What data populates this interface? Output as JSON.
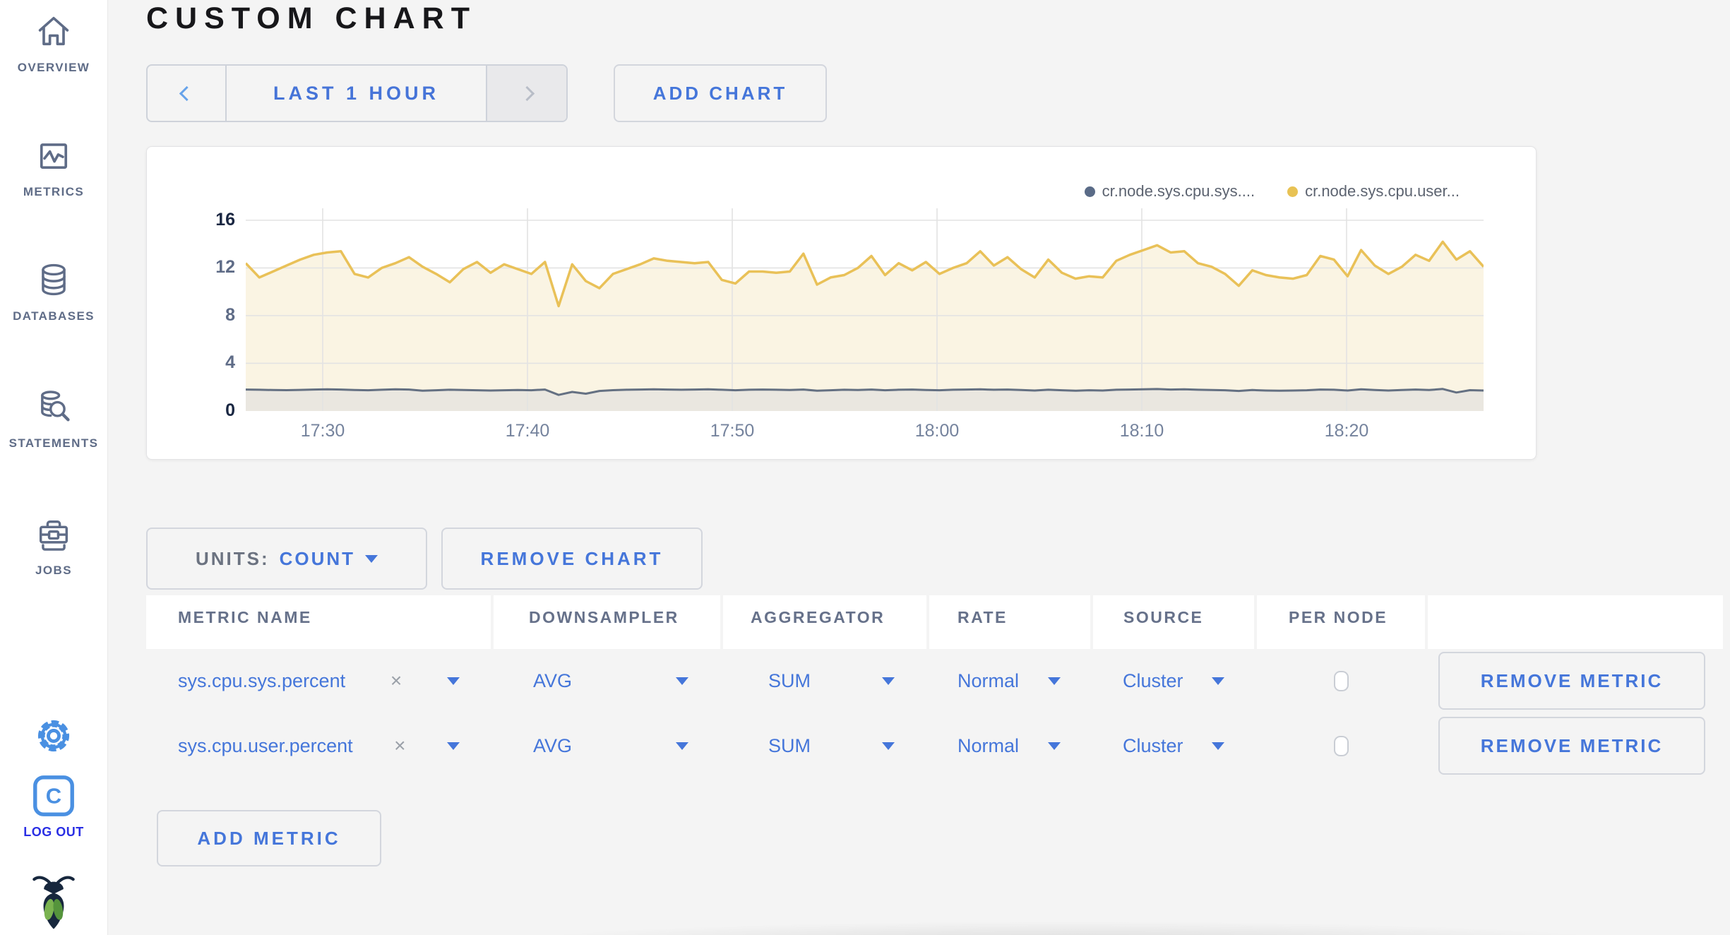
{
  "page": {
    "title": "CUSTOM CHART"
  },
  "colors": {
    "accent_blue": "#4576da",
    "sidebar_slate": "#5f6c87",
    "logout_blue": "#2a2fe4",
    "icon_blue": "#4a90e2",
    "series_sys": "#647082",
    "series_user": "#e9c158",
    "fill_user": "#faf4e3",
    "fill_sys": "#eae7e0"
  },
  "sidebar": {
    "items": [
      {
        "id": "overview",
        "label": "OVERVIEW"
      },
      {
        "id": "metrics",
        "label": "METRICS"
      },
      {
        "id": "databases",
        "label": "DATABASES"
      },
      {
        "id": "statements",
        "label": "STATEMENTS"
      },
      {
        "id": "jobs",
        "label": "JOBS"
      }
    ],
    "logout_label": "LOG OUT"
  },
  "toolbar": {
    "time_range_label": "LAST 1 HOUR",
    "add_chart_label": "ADD CHART"
  },
  "chart_controls": {
    "units_label": "UNITS:",
    "units_value": "COUNT",
    "remove_chart_label": "REMOVE CHART",
    "add_metric_label": "ADD METRIC"
  },
  "table": {
    "headers": [
      "METRIC NAME",
      "DOWNSAMPLER",
      "AGGREGATOR",
      "RATE",
      "SOURCE",
      "PER NODE"
    ],
    "rows": [
      {
        "metric": "sys.cpu.sys.percent",
        "clear": "×",
        "downsampler": "AVG",
        "aggregator": "SUM",
        "rate": "Normal",
        "source": "Cluster",
        "per_node": false,
        "remove_label": "REMOVE METRIC"
      },
      {
        "metric": "sys.cpu.user.percent",
        "clear": "×",
        "downsampler": "AVG",
        "aggregator": "SUM",
        "rate": "Normal",
        "source": "Cluster",
        "per_node": false,
        "remove_label": "REMOVE METRIC"
      }
    ]
  },
  "chart_data": {
    "type": "area",
    "title": "",
    "xlabel": "",
    "ylabel": "",
    "ylim": [
      0,
      17
    ],
    "grid": true,
    "legend_position": "top-right",
    "x_ticks": [
      "17:30",
      "17:40",
      "17:50",
      "18:00",
      "18:10",
      "18:20"
    ],
    "y_ticks": [
      0,
      4,
      8,
      12,
      16
    ],
    "legend": [
      {
        "name": "cr.node.sys.cpu.sys....",
        "color": "#5a6b87"
      },
      {
        "name": "cr.node.sys.cpu.user...",
        "color": "#e8c254"
      }
    ],
    "series": [
      {
        "name": "cr.node.sys.cpu.user...",
        "color": "#e9c158",
        "fill": "#faf4e3",
        "values": [
          12.4,
          11.2,
          11.7,
          12.2,
          12.7,
          13.1,
          13.3,
          13.4,
          11.5,
          11.2,
          12.0,
          12.4,
          12.9,
          12.1,
          11.5,
          10.8,
          11.9,
          12.5,
          11.6,
          12.3,
          11.9,
          11.5,
          12.5,
          8.8,
          12.3,
          10.9,
          10.3,
          11.5,
          11.9,
          12.3,
          12.8,
          12.6,
          12.5,
          12.4,
          12.5,
          11.0,
          10.7,
          11.7,
          11.7,
          11.6,
          11.7,
          13.2,
          10.6,
          11.2,
          11.4,
          12.0,
          13.0,
          11.4,
          12.4,
          11.8,
          12.5,
          11.5,
          12.0,
          12.4,
          13.4,
          12.2,
          12.9,
          11.9,
          11.2,
          12.7,
          11.6,
          11.1,
          11.3,
          11.2,
          12.6,
          13.1,
          13.5,
          13.9,
          13.3,
          13.4,
          12.4,
          12.1,
          11.5,
          10.5,
          11.8,
          11.4,
          11.2,
          11.1,
          11.4,
          13.0,
          12.7,
          11.3,
          13.5,
          12.2,
          11.5,
          12.1,
          13.1,
          12.6,
          14.2,
          12.7,
          13.4,
          12.1
        ]
      },
      {
        "name": "cr.node.sys.cpu.sys....",
        "color": "#647082",
        "fill": "#eae7e0",
        "values": [
          1.8,
          1.78,
          1.76,
          1.75,
          1.77,
          1.8,
          1.82,
          1.8,
          1.76,
          1.74,
          1.78,
          1.82,
          1.8,
          1.7,
          1.74,
          1.78,
          1.76,
          1.74,
          1.72,
          1.74,
          1.76,
          1.74,
          1.8,
          1.35,
          1.6,
          1.45,
          1.68,
          1.75,
          1.78,
          1.8,
          1.82,
          1.8,
          1.78,
          1.8,
          1.82,
          1.78,
          1.74,
          1.78,
          1.8,
          1.78,
          1.76,
          1.8,
          1.7,
          1.74,
          1.78,
          1.76,
          1.8,
          1.74,
          1.78,
          1.8,
          1.76,
          1.74,
          1.78,
          1.8,
          1.82,
          1.78,
          1.8,
          1.76,
          1.72,
          1.78,
          1.74,
          1.7,
          1.74,
          1.72,
          1.78,
          1.8,
          1.82,
          1.84,
          1.8,
          1.82,
          1.78,
          1.76,
          1.74,
          1.68,
          1.76,
          1.72,
          1.7,
          1.72,
          1.74,
          1.8,
          1.78,
          1.72,
          1.82,
          1.76,
          1.72,
          1.76,
          1.8,
          1.76,
          1.85,
          1.55,
          1.75,
          1.72
        ]
      }
    ]
  }
}
